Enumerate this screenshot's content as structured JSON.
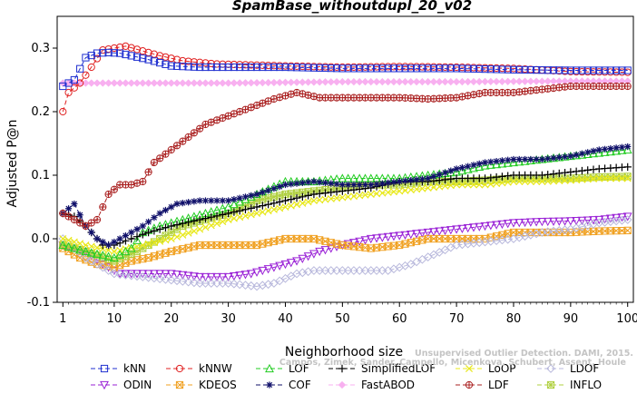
{
  "chart_data": {
    "type": "line",
    "title": "SpamBase_withoutdupl_20_v02",
    "xlabel": "Neighborhood size",
    "ylabel": "Adjusted P@n",
    "xlim": [
      0,
      101
    ],
    "ylim": [
      -0.1,
      0.35
    ],
    "x_ticks": [
      "1",
      "10",
      "20",
      "30",
      "40",
      "50",
      "60",
      "70",
      "80",
      "90",
      "100"
    ],
    "y_ticks": [
      "-0.1",
      "0.0",
      "0.1",
      "0.2",
      "0.3"
    ],
    "x_range": [
      1,
      100
    ],
    "watermark": [
      "Unsupervised Outlier Detection. DAMI, 2015.",
      "Campos, Zimek, Sander, Campello, Micenkova, Schubert, Assent, Houle"
    ],
    "legend_position": "bottom",
    "series": [
      {
        "name": "kNN",
        "color": "#1f2fd0",
        "marker": "square",
        "keys": [
          [
            1,
            0.24
          ],
          [
            3,
            0.25
          ],
          [
            5,
            0.285
          ],
          [
            7,
            0.292
          ],
          [
            9,
            0.293
          ],
          [
            11,
            0.292
          ],
          [
            13,
            0.288
          ],
          [
            16,
            0.282
          ],
          [
            20,
            0.272
          ],
          [
            25,
            0.27
          ],
          [
            30,
            0.27
          ],
          [
            40,
            0.27
          ],
          [
            50,
            0.268
          ],
          [
            60,
            0.268
          ],
          [
            70,
            0.268
          ],
          [
            80,
            0.266
          ],
          [
            90,
            0.265
          ],
          [
            100,
            0.265
          ]
        ]
      },
      {
        "name": "kNNW",
        "color": "#e02020",
        "marker": "circle",
        "keys": [
          [
            1,
            0.2
          ],
          [
            2,
            0.23
          ],
          [
            4,
            0.245
          ],
          [
            6,
            0.27
          ],
          [
            8,
            0.297
          ],
          [
            10,
            0.3
          ],
          [
            12,
            0.303
          ],
          [
            14,
            0.298
          ],
          [
            18,
            0.288
          ],
          [
            22,
            0.28
          ],
          [
            28,
            0.275
          ],
          [
            40,
            0.272
          ],
          [
            50,
            0.27
          ],
          [
            60,
            0.271
          ],
          [
            70,
            0.27
          ],
          [
            80,
            0.268
          ],
          [
            90,
            0.263
          ],
          [
            100,
            0.262
          ]
        ]
      },
      {
        "name": "LOF",
        "color": "#22cc22",
        "marker": "triangle-up",
        "keys": [
          [
            1,
            -0.01
          ],
          [
            5,
            -0.02
          ],
          [
            10,
            -0.03
          ],
          [
            13,
            -0.015
          ],
          [
            15,
            0.01
          ],
          [
            18,
            0.02
          ],
          [
            22,
            0.03
          ],
          [
            26,
            0.04
          ],
          [
            30,
            0.05
          ],
          [
            35,
            0.07
          ],
          [
            40,
            0.09
          ],
          [
            45,
            0.09
          ],
          [
            50,
            0.095
          ],
          [
            55,
            0.095
          ],
          [
            60,
            0.095
          ],
          [
            65,
            0.1
          ],
          [
            70,
            0.105
          ],
          [
            75,
            0.115
          ],
          [
            80,
            0.12
          ],
          [
            85,
            0.125
          ],
          [
            90,
            0.13
          ],
          [
            95,
            0.135
          ],
          [
            100,
            0.14
          ]
        ]
      },
      {
        "name": "SimplifiedLOF",
        "color": "#000000",
        "marker": "plus",
        "keys": [
          [
            1,
            0.04
          ],
          [
            3,
            0.035
          ],
          [
            5,
            0.02
          ],
          [
            8,
            -0.01
          ],
          [
            10,
            -0.01
          ],
          [
            13,
            0.0
          ],
          [
            16,
            0.01
          ],
          [
            20,
            0.02
          ],
          [
            25,
            0.03
          ],
          [
            30,
            0.04
          ],
          [
            35,
            0.05
          ],
          [
            40,
            0.06
          ],
          [
            45,
            0.07
          ],
          [
            50,
            0.075
          ],
          [
            55,
            0.08
          ],
          [
            60,
            0.09
          ],
          [
            65,
            0.09
          ],
          [
            70,
            0.095
          ],
          [
            75,
            0.095
          ],
          [
            80,
            0.1
          ],
          [
            85,
            0.1
          ],
          [
            90,
            0.105
          ],
          [
            95,
            0.11
          ],
          [
            100,
            0.113
          ]
        ]
      },
      {
        "name": "LoOP",
        "color": "#e8e81a",
        "marker": "x",
        "keys": [
          [
            1,
            0.0
          ],
          [
            5,
            -0.01
          ],
          [
            10,
            -0.02
          ],
          [
            15,
            -0.01
          ],
          [
            20,
            0.0
          ],
          [
            25,
            0.015
          ],
          [
            30,
            0.03
          ],
          [
            35,
            0.04
          ],
          [
            40,
            0.05
          ],
          [
            45,
            0.06
          ],
          [
            50,
            0.065
          ],
          [
            55,
            0.07
          ],
          [
            60,
            0.075
          ],
          [
            65,
            0.08
          ],
          [
            70,
            0.085
          ],
          [
            75,
            0.085
          ],
          [
            80,
            0.09
          ],
          [
            85,
            0.09
          ],
          [
            90,
            0.092
          ],
          [
            95,
            0.095
          ],
          [
            100,
            0.095
          ]
        ]
      },
      {
        "name": "LDOF",
        "color": "#b8b8dc",
        "marker": "diamond",
        "keys": [
          [
            1,
            0.0
          ],
          [
            5,
            -0.03
          ],
          [
            10,
            -0.055
          ],
          [
            15,
            -0.06
          ],
          [
            20,
            -0.065
          ],
          [
            25,
            -0.07
          ],
          [
            30,
            -0.07
          ],
          [
            35,
            -0.075
          ],
          [
            38,
            -0.07
          ],
          [
            42,
            -0.055
          ],
          [
            45,
            -0.05
          ],
          [
            50,
            -0.05
          ],
          [
            55,
            -0.05
          ],
          [
            58,
            -0.05
          ],
          [
            62,
            -0.04
          ],
          [
            66,
            -0.025
          ],
          [
            70,
            -0.01
          ],
          [
            75,
            -0.005
          ],
          [
            80,
            0.0
          ],
          [
            85,
            0.01
          ],
          [
            90,
            0.015
          ],
          [
            95,
            0.025
          ],
          [
            100,
            0.03
          ]
        ]
      },
      {
        "name": "ODIN",
        "color": "#9a22d6",
        "marker": "triangle-down",
        "keys": [
          [
            1,
            -0.01
          ],
          [
            5,
            -0.02
          ],
          [
            8,
            -0.04
          ],
          [
            11,
            -0.055
          ],
          [
            15,
            -0.055
          ],
          [
            20,
            -0.055
          ],
          [
            25,
            -0.06
          ],
          [
            30,
            -0.06
          ],
          [
            34,
            -0.055
          ],
          [
            38,
            -0.045
          ],
          [
            42,
            -0.035
          ],
          [
            46,
            -0.02
          ],
          [
            50,
            -0.01
          ],
          [
            55,
            0.0
          ],
          [
            60,
            0.005
          ],
          [
            65,
            0.01
          ],
          [
            70,
            0.015
          ],
          [
            75,
            0.02
          ],
          [
            80,
            0.025
          ],
          [
            85,
            0.027
          ],
          [
            90,
            0.028
          ],
          [
            95,
            0.03
          ],
          [
            100,
            0.035
          ]
        ]
      },
      {
        "name": "KDEOS",
        "color": "#f0a020",
        "marker": "square-x",
        "keys": [
          [
            1,
            -0.015
          ],
          [
            4,
            -0.03
          ],
          [
            7,
            -0.04
          ],
          [
            10,
            -0.045
          ],
          [
            13,
            -0.035
          ],
          [
            16,
            -0.03
          ],
          [
            20,
            -0.02
          ],
          [
            25,
            -0.01
          ],
          [
            30,
            -0.01
          ],
          [
            35,
            -0.01
          ],
          [
            40,
            0.0
          ],
          [
            45,
            0.0
          ],
          [
            50,
            -0.01
          ],
          [
            55,
            -0.015
          ],
          [
            60,
            -0.01
          ],
          [
            65,
            0.0
          ],
          [
            70,
            0.0
          ],
          [
            75,
            0.0
          ],
          [
            80,
            0.01
          ],
          [
            85,
            0.01
          ],
          [
            90,
            0.01
          ],
          [
            95,
            0.012
          ],
          [
            100,
            0.013
          ]
        ]
      },
      {
        "name": "COF",
        "color": "#10106a",
        "marker": "star",
        "keys": [
          [
            1,
            0.04
          ],
          [
            3,
            0.055
          ],
          [
            5,
            0.02
          ],
          [
            7,
            0.0
          ],
          [
            9,
            -0.01
          ],
          [
            11,
            0.0
          ],
          [
            13,
            0.01
          ],
          [
            15,
            0.02
          ],
          [
            18,
            0.04
          ],
          [
            21,
            0.055
          ],
          [
            25,
            0.06
          ],
          [
            30,
            0.06
          ],
          [
            35,
            0.07
          ],
          [
            40,
            0.085
          ],
          [
            45,
            0.09
          ],
          [
            50,
            0.085
          ],
          [
            55,
            0.085
          ],
          [
            60,
            0.09
          ],
          [
            65,
            0.095
          ],
          [
            70,
            0.11
          ],
          [
            75,
            0.12
          ],
          [
            80,
            0.125
          ],
          [
            85,
            0.125
          ],
          [
            90,
            0.13
          ],
          [
            95,
            0.14
          ],
          [
            100,
            0.145
          ]
        ]
      },
      {
        "name": "FastABOD",
        "color": "#f8b0f0",
        "marker": "diamond-filled",
        "keys": [
          [
            1,
            0.245
          ],
          [
            5,
            0.245
          ],
          [
            10,
            0.245
          ],
          [
            20,
            0.245
          ],
          [
            30,
            0.245
          ],
          [
            50,
            0.247
          ],
          [
            70,
            0.247
          ],
          [
            90,
            0.248
          ],
          [
            100,
            0.248
          ]
        ]
      },
      {
        "name": "LDF",
        "color": "#aa2020",
        "marker": "circle-plus",
        "keys": [
          [
            1,
            0.04
          ],
          [
            3,
            0.03
          ],
          [
            5,
            0.02
          ],
          [
            7,
            0.03
          ],
          [
            9,
            0.07
          ],
          [
            11,
            0.085
          ],
          [
            13,
            0.085
          ],
          [
            15,
            0.09
          ],
          [
            17,
            0.12
          ],
          [
            20,
            0.14
          ],
          [
            23,
            0.16
          ],
          [
            26,
            0.18
          ],
          [
            29,
            0.19
          ],
          [
            32,
            0.2
          ],
          [
            35,
            0.21
          ],
          [
            38,
            0.22
          ],
          [
            42,
            0.23
          ],
          [
            46,
            0.222
          ],
          [
            50,
            0.222
          ],
          [
            55,
            0.222
          ],
          [
            60,
            0.222
          ],
          [
            65,
            0.22
          ],
          [
            70,
            0.222
          ],
          [
            75,
            0.23
          ],
          [
            80,
            0.23
          ],
          [
            85,
            0.235
          ],
          [
            90,
            0.24
          ],
          [
            95,
            0.24
          ],
          [
            100,
            0.24
          ]
        ]
      },
      {
        "name": "INFLO",
        "color": "#b0d040",
        "marker": "square-star",
        "keys": [
          [
            1,
            -0.01
          ],
          [
            5,
            -0.02
          ],
          [
            10,
            -0.035
          ],
          [
            14,
            -0.02
          ],
          [
            18,
            0.0
          ],
          [
            22,
            0.02
          ],
          [
            26,
            0.03
          ],
          [
            30,
            0.04
          ],
          [
            35,
            0.06
          ],
          [
            40,
            0.07
          ],
          [
            45,
            0.075
          ],
          [
            50,
            0.08
          ],
          [
            55,
            0.085
          ],
          [
            60,
            0.085
          ],
          [
            65,
            0.09
          ],
          [
            70,
            0.09
          ],
          [
            75,
            0.092
          ],
          [
            80,
            0.095
          ],
          [
            85,
            0.095
          ],
          [
            90,
            0.095
          ],
          [
            95,
            0.097
          ],
          [
            100,
            0.098
          ]
        ]
      }
    ]
  }
}
